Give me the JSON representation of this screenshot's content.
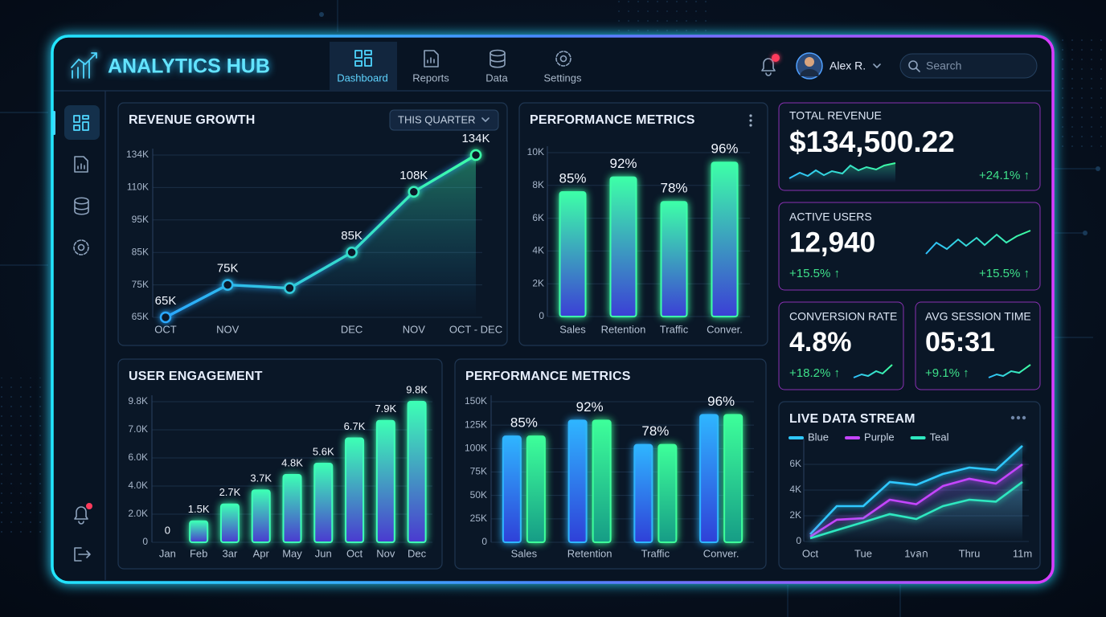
{
  "header": {
    "title": "ANALYTICS HUB",
    "nav": [
      "Dashboard",
      "Reports",
      "Data",
      "Settings"
    ],
    "active_nav": 0,
    "user": "Alex R.",
    "search": "Search"
  },
  "kpis": [
    {
      "label": "TOTAL REVENUE",
      "value": "$134,500.22",
      "change": "+24.1% ↑"
    },
    {
      "label": "ACTIVE USERS",
      "value": "12,940",
      "change": "+15.5% ↑"
    },
    {
      "label": "CONVERSION RATE",
      "value": "4.8%",
      "change": "+18.2% ↑"
    },
    {
      "label": "AVG SESSION TIME",
      "value": "05:31",
      "change": "+9.1% ↑"
    }
  ],
  "charts": [
    {
      "type": "line",
      "title": "REVENUE GROWTH",
      "filter": "THIS QUARTER",
      "categories": [
        "OCT",
        "NOV",
        null,
        "DEC",
        "NOV",
        "OCT - DEC"
      ],
      "values": [
        65000,
        75000,
        74000,
        85000,
        108000,
        134000
      ],
      "value_labels": [
        "65K",
        "75K",
        null,
        "85K",
        "108K",
        "134K"
      ],
      "color": "#2aa8ff",
      "end_color": "#3dffa8",
      "area": true,
      "markers": true,
      "grid": true,
      "ylim": [
        65000,
        134000
      ],
      "yticks": [
        {
          "value": 65000,
          "label": "65K"
        },
        {
          "value": 75000,
          "label": "75K"
        },
        {
          "value": 85000,
          "label": "85K"
        },
        {
          "value": 95000,
          "label": "95K"
        },
        {
          "value": 110000,
          "label": "110K"
        },
        {
          "value": 134000,
          "label": "134K"
        }
      ]
    },
    {
      "type": "bar",
      "title": "PERFORMANCE METRICS",
      "categories": [
        "Sales",
        "Retention",
        "Traffic",
        "Conver."
      ],
      "values": [
        7600,
        8500,
        7000,
        9400
      ],
      "annotations": [
        "85%",
        "92%",
        "78%",
        "96%"
      ],
      "color": "#3dffa8",
      "bottom_color": "#3b3fd6",
      "grid": true,
      "ylim": [
        0,
        10000
      ],
      "yticks": [
        0,
        {
          "value": 2000,
          "label": "2K"
        },
        {
          "value": 4000,
          "label": "4K"
        },
        {
          "value": 6000,
          "label": "6K"
        },
        {
          "value": 8000,
          "label": "8K"
        },
        {
          "value": 10000,
          "label": "10K"
        }
      ]
    },
    {
      "type": "bar",
      "title": "USER ENGAGEMENT",
      "categories": [
        "Jan",
        "Feb",
        "3ar",
        "Apr",
        "May",
        "Jun",
        "Oct",
        "Nov",
        "Dec"
      ],
      "values": [
        0,
        1500,
        2700,
        3700,
        4800,
        5600,
        6700,
        7900,
        9800
      ],
      "value_labels": [
        "0",
        "1.5K",
        "2.7K",
        "3.7K",
        "4.8K",
        "5.6K",
        "6.7K",
        "7.9K",
        "9.8K"
      ],
      "color": "#3dffb5",
      "bottom_color": "#4a3ad0",
      "grid": true,
      "ylim": [
        0,
        9800
      ],
      "yticks": [
        0,
        {
          "value": 2000,
          "label": "2.0K"
        },
        {
          "value": 4000,
          "label": "4.0K"
        },
        {
          "value": 6000,
          "label": "6.0K"
        },
        {
          "value": 7000,
          "label": "7.0K"
        },
        {
          "value": 9800,
          "label": "9.8K"
        }
      ]
    },
    {
      "type": "bar",
      "title": "PERFORMANCE METRICS",
      "categories": [
        "Sales",
        "Retention",
        "Traffic",
        "Conver."
      ],
      "series": [
        {
          "color": "#2fb5ff",
          "bottom_color": "#2f40d8",
          "values": [
            113000,
            130000,
            104000,
            136000
          ]
        },
        {
          "color": "#3dff9a",
          "bottom_color": "#169c86",
          "values": [
            113000,
            130000,
            104000,
            136000
          ]
        }
      ],
      "annotations": [
        "85%",
        "92%",
        "78%",
        "96%"
      ],
      "grid": true,
      "ylim": [
        0,
        150000
      ],
      "yticks": [
        0,
        {
          "value": 25000,
          "label": "25K"
        },
        {
          "value": 50000,
          "label": "50K"
        },
        {
          "value": 75000,
          "label": "75K"
        },
        {
          "value": 100000,
          "label": "100K"
        },
        {
          "value": 125000,
          "label": "125K"
        },
        {
          "value": 150000,
          "label": "150K"
        }
      ]
    },
    {
      "type": "line",
      "title": "LIVE DATA STREAM",
      "legend": "top",
      "area": true,
      "grid": true,
      "categories": [
        "Oct",
        null,
        "Tue",
        null,
        "1vลก",
        null,
        "Thru",
        null,
        "11m"
      ],
      "series": [
        {
          "name": "Blue",
          "color": "#2fc8ff",
          "values": [
            560,
            2750,
            2750,
            4630,
            4400,
            5250,
            5750,
            5560,
            7440
          ]
        },
        {
          "name": "Purple",
          "color": "#c545ff",
          "values": [
            375,
            1690,
            1810,
            3250,
            2900,
            4310,
            4880,
            4500,
            6000
          ]
        },
        {
          "name": "Teal",
          "color": "#2ee8c0",
          "values": [
            250,
            880,
            1500,
            2130,
            1750,
            2750,
            3250,
            3100,
            4630
          ]
        }
      ],
      "ylim": [
        0,
        7500
      ],
      "yticks": [
        0,
        {
          "value": 2000,
          "label": "2K"
        },
        {
          "value": 4000,
          "label": "4K"
        },
        {
          "value": 6000,
          "label": "6K"
        }
      ]
    }
  ]
}
